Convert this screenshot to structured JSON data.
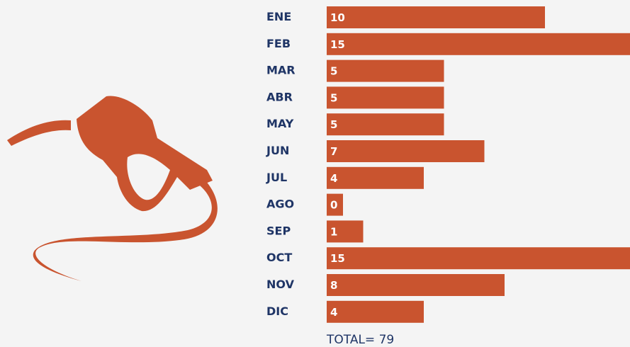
{
  "chart_data": {
    "type": "bar",
    "orientation": "horizontal",
    "categories": [
      "ENE",
      "FEB",
      "MAR",
      "ABR",
      "MAY",
      "JUN",
      "JUL",
      "AGO",
      "SEP",
      "OCT",
      "NOV",
      "DIC"
    ],
    "values": [
      10,
      15,
      5,
      5,
      5,
      7,
      4,
      0,
      1,
      15,
      8,
      4
    ],
    "color": "#c9542f",
    "total": "TOTAL= 79"
  }
}
